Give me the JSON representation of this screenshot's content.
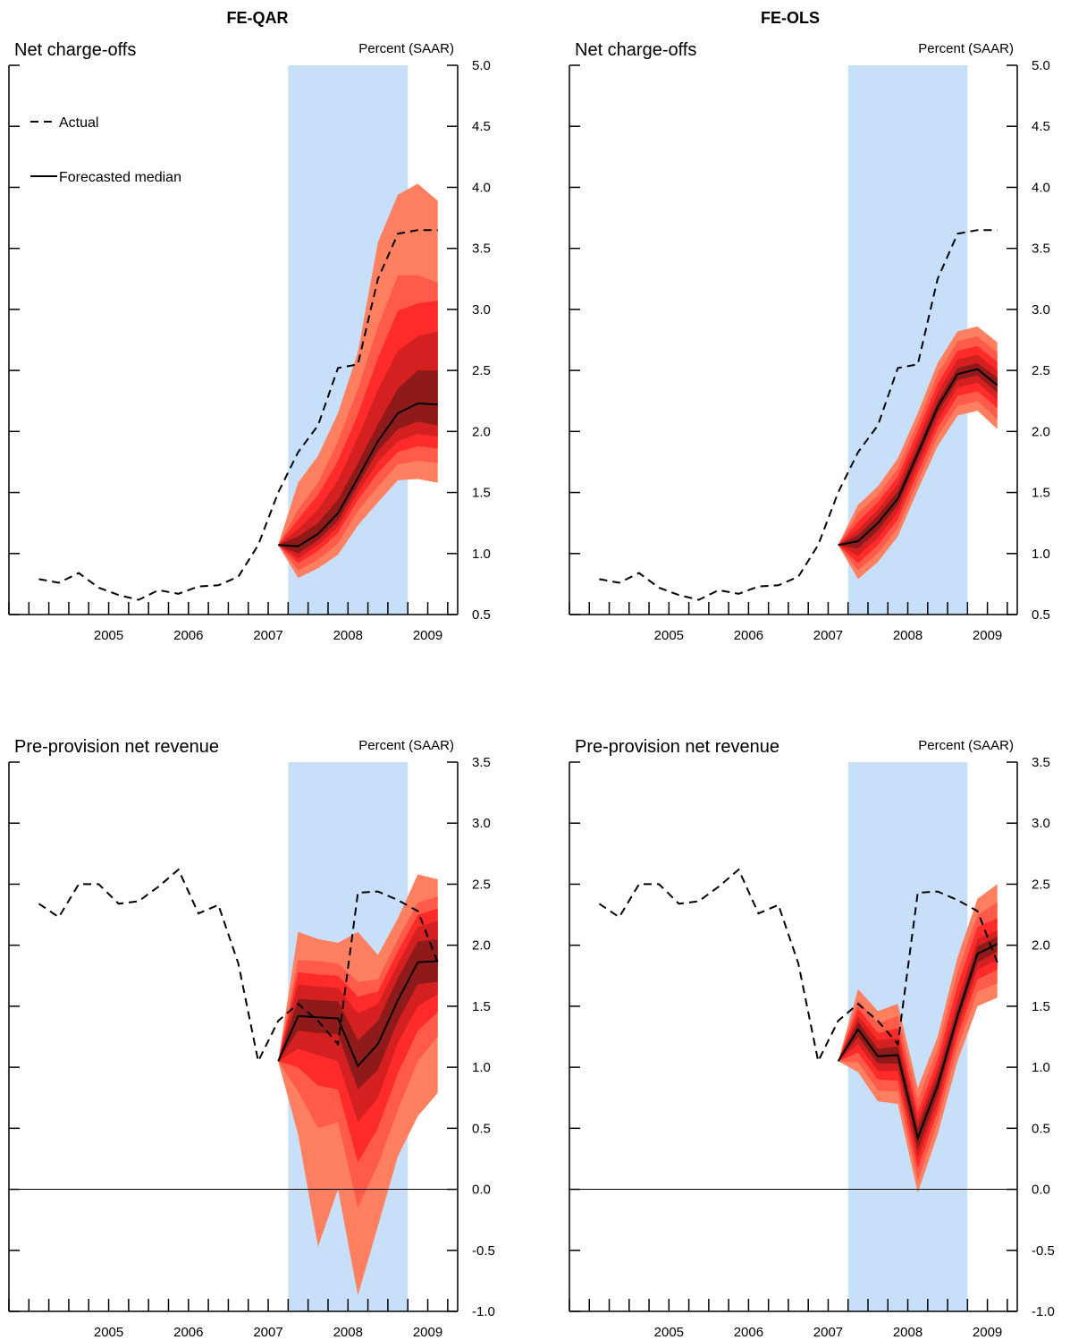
{
  "column_titles": [
    "FE-QAR",
    "FE-OLS"
  ],
  "colors": {
    "recession_band": "#c8dffa",
    "fan_outer": "#ff8060",
    "fan_2": "#ff5a4a",
    "fan_3": "#ff2a2a",
    "fan_4": "#d42020",
    "fan_inner": "#8e1a1a",
    "median_line": "#000000",
    "actual_line": "#000000"
  },
  "legend": {
    "actual": "Actual",
    "median": "Forecasted median"
  },
  "chart_data": [
    {
      "id": "nco-qar",
      "type": "area",
      "title": "Net charge-offs",
      "ylabel": "Percent (SAAR)",
      "column": "FE-QAR",
      "show_legend": true,
      "ylim": [
        0.5,
        5.0
      ],
      "yticks": [
        0.5,
        1.0,
        1.5,
        2.0,
        2.5,
        3.0,
        3.5,
        4.0,
        4.5,
        5.0
      ],
      "ytick_labels": [
        "0.5",
        "1.0",
        "1.5",
        "2.0",
        "2.5",
        "3.0",
        "3.5",
        "4.0",
        "4.5",
        "5.0"
      ],
      "xlim": [
        2004.25,
        2009.875
      ],
      "year_labels": [
        "2005",
        "2006",
        "2007",
        "2008",
        "2009"
      ],
      "recession": [
        2007.75,
        2009.25
      ],
      "zero_line": false,
      "actual": {
        "x": [
          2004.625,
          2004.875,
          2005.125,
          2005.375,
          2005.625,
          2005.875,
          2006.125,
          2006.375,
          2006.625,
          2006.875,
          2007.125,
          2007.375,
          2007.625,
          2007.875,
          2008.125,
          2008.375,
          2008.625,
          2008.875,
          2009.125,
          2009.375,
          2009.625
        ],
        "y": [
          0.79,
          0.76,
          0.84,
          0.72,
          0.66,
          0.62,
          0.7,
          0.67,
          0.73,
          0.74,
          0.81,
          1.07,
          1.5,
          1.83,
          2.05,
          2.52,
          2.55,
          3.25,
          3.62,
          3.65,
          3.65
        ]
      },
      "forecast": {
        "x": [
          2007.625,
          2007.875,
          2008.125,
          2008.375,
          2008.625,
          2008.875,
          2009.125,
          2009.375,
          2009.625
        ],
        "median": [
          1.07,
          1.06,
          1.16,
          1.33,
          1.62,
          1.92,
          2.15,
          2.23,
          2.22
        ],
        "bands": [
          {
            "lower": [
              1.07,
              0.8,
              0.88,
              0.99,
              1.23,
              1.42,
              1.6,
              1.61,
              1.58
            ],
            "upper": [
              1.07,
              1.58,
              1.8,
              2.15,
              2.65,
              3.55,
              3.94,
              4.03,
              3.89
            ]
          },
          {
            "lower": [
              1.07,
              0.86,
              0.95,
              1.08,
              1.35,
              1.55,
              1.73,
              1.76,
              1.74
            ],
            "upper": [
              1.07,
              1.36,
              1.58,
              1.92,
              2.35,
              2.86,
              3.28,
              3.28,
              3.22
            ]
          },
          {
            "lower": [
              1.07,
              0.92,
              1.02,
              1.17,
              1.44,
              1.66,
              1.83,
              1.88,
              1.86
            ],
            "upper": [
              1.07,
              1.28,
              1.48,
              1.76,
              2.14,
              2.6,
              2.99,
              3.05,
              3.07
            ]
          },
          {
            "lower": [
              1.07,
              0.96,
              1.07,
              1.22,
              1.5,
              1.75,
              1.92,
              1.98,
              1.96
            ],
            "upper": [
              1.07,
              1.2,
              1.36,
              1.6,
              1.95,
              2.34,
              2.66,
              2.78,
              2.82
            ]
          },
          {
            "lower": [
              1.07,
              1.0,
              1.11,
              1.27,
              1.56,
              1.84,
              2.02,
              2.08,
              2.05
            ],
            "upper": [
              1.07,
              1.14,
              1.25,
              1.44,
              1.74,
              2.06,
              2.35,
              2.5,
              2.5
            ]
          }
        ]
      }
    },
    {
      "id": "nco-ols",
      "type": "area",
      "title": "Net charge-offs",
      "ylabel": "Percent (SAAR)",
      "column": "FE-OLS",
      "show_legend": false,
      "ylim": [
        0.5,
        5.0
      ],
      "yticks": [
        0.5,
        1.0,
        1.5,
        2.0,
        2.5,
        3.0,
        3.5,
        4.0,
        4.5,
        5.0
      ],
      "ytick_labels": [
        "0.5",
        "1.0",
        "1.5",
        "2.0",
        "2.5",
        "3.0",
        "3.5",
        "4.0",
        "4.5",
        "5.0"
      ],
      "xlim": [
        2004.25,
        2009.875
      ],
      "year_labels": [
        "2005",
        "2006",
        "2007",
        "2008",
        "2009"
      ],
      "recession": [
        2007.75,
        2009.25
      ],
      "zero_line": false,
      "actual": {
        "x": [
          2004.625,
          2004.875,
          2005.125,
          2005.375,
          2005.625,
          2005.875,
          2006.125,
          2006.375,
          2006.625,
          2006.875,
          2007.125,
          2007.375,
          2007.625,
          2007.875,
          2008.125,
          2008.375,
          2008.625,
          2008.875,
          2009.125,
          2009.375,
          2009.625
        ],
        "y": [
          0.79,
          0.76,
          0.84,
          0.72,
          0.66,
          0.62,
          0.7,
          0.67,
          0.73,
          0.74,
          0.81,
          1.07,
          1.5,
          1.83,
          2.05,
          2.52,
          2.55,
          3.25,
          3.62,
          3.65,
          3.65
        ]
      },
      "forecast": {
        "x": [
          2007.625,
          2007.875,
          2008.125,
          2008.375,
          2008.625,
          2008.875,
          2009.125,
          2009.375,
          2009.625
        ],
        "median": [
          1.07,
          1.1,
          1.25,
          1.45,
          1.82,
          2.2,
          2.47,
          2.51,
          2.38
        ],
        "bands": [
          {
            "lower": [
              1.07,
              0.79,
              0.93,
              1.14,
              1.52,
              1.88,
              2.13,
              2.17,
              2.02
            ],
            "upper": [
              1.07,
              1.4,
              1.55,
              1.78,
              2.15,
              2.56,
              2.82,
              2.86,
              2.73
            ]
          },
          {
            "lower": [
              1.07,
              0.86,
              1.0,
              1.21,
              1.59,
              1.96,
              2.21,
              2.25,
              2.1
            ],
            "upper": [
              1.07,
              1.33,
              1.48,
              1.7,
              2.07,
              2.47,
              2.74,
              2.78,
              2.65
            ]
          },
          {
            "lower": [
              1.07,
              0.92,
              1.07,
              1.28,
              1.66,
              2.03,
              2.29,
              2.33,
              2.19
            ],
            "upper": [
              1.07,
              1.26,
              1.42,
              1.63,
              2.0,
              2.39,
              2.66,
              2.7,
              2.57
            ]
          },
          {
            "lower": [
              1.07,
              0.98,
              1.13,
              1.34,
              1.72,
              2.09,
              2.36,
              2.4,
              2.26
            ],
            "upper": [
              1.07,
              1.2,
              1.36,
              1.57,
              1.93,
              2.32,
              2.59,
              2.63,
              2.5
            ]
          },
          {
            "lower": [
              1.07,
              1.04,
              1.19,
              1.4,
              1.77,
              2.15,
              2.42,
              2.46,
              2.32
            ],
            "upper": [
              1.07,
              1.15,
              1.31,
              1.51,
              1.87,
              2.25,
              2.52,
              2.56,
              2.44
            ]
          }
        ]
      }
    },
    {
      "id": "ppnr-qar",
      "type": "area",
      "title": "Pre-provision net revenue",
      "ylabel": "Percent (SAAR)",
      "column": "FE-QAR",
      "show_legend": false,
      "ylim": [
        -1.0,
        3.5
      ],
      "yticks": [
        -1.0,
        -0.5,
        0.0,
        0.5,
        1.0,
        1.5,
        2.0,
        2.5,
        3.0,
        3.5
      ],
      "ytick_labels": [
        "-1.0",
        "-0.5",
        "0.0",
        "0.5",
        "1.0",
        "1.5",
        "2.0",
        "2.5",
        "3.0",
        "3.5"
      ],
      "xlim": [
        2004.25,
        2009.875
      ],
      "year_labels": [
        "2005",
        "2006",
        "2007",
        "2008",
        "2009"
      ],
      "recession": [
        2007.75,
        2009.25
      ],
      "zero_line": true,
      "actual": {
        "x": [
          2004.625,
          2004.875,
          2005.125,
          2005.375,
          2005.625,
          2005.875,
          2006.125,
          2006.375,
          2006.625,
          2006.875,
          2007.125,
          2007.375,
          2007.625,
          2007.875,
          2008.125,
          2008.375,
          2008.625,
          2008.875,
          2009.125,
          2009.375,
          2009.625
        ],
        "y": [
          2.34,
          2.23,
          2.5,
          2.5,
          2.34,
          2.36,
          2.48,
          2.62,
          2.26,
          2.33,
          1.85,
          1.05,
          1.38,
          1.52,
          1.38,
          1.19,
          2.43,
          2.44,
          2.37,
          2.28,
          1.86
        ]
      },
      "forecast": {
        "x": [
          2007.625,
          2007.875,
          2008.125,
          2008.375,
          2008.625,
          2008.875,
          2009.125,
          2009.375,
          2009.625
        ],
        "median": [
          1.05,
          1.42,
          1.41,
          1.4,
          1.01,
          1.19,
          1.55,
          1.86,
          1.87
        ],
        "bands": [
          {
            "lower": [
              1.05,
              0.45,
              -0.47,
              0.0,
              -0.87,
              -0.3,
              0.27,
              0.6,
              0.79
            ],
            "upper": [
              1.05,
              2.11,
              2.05,
              2.02,
              2.11,
              1.92,
              2.22,
              2.58,
              2.54
            ]
          },
          {
            "lower": [
              1.05,
              0.8,
              0.5,
              0.55,
              -0.15,
              0.2,
              0.65,
              1.05,
              1.25
            ],
            "upper": [
              1.05,
              1.88,
              1.87,
              1.85,
              1.7,
              1.72,
              2.05,
              2.35,
              2.4
            ]
          },
          {
            "lower": [
              1.05,
              1.0,
              0.85,
              0.82,
              0.22,
              0.5,
              0.95,
              1.3,
              1.45
            ],
            "upper": [
              1.05,
              1.78,
              1.76,
              1.75,
              1.58,
              1.62,
              1.95,
              2.25,
              2.3
            ]
          },
          {
            "lower": [
              1.05,
              1.15,
              1.1,
              1.05,
              0.55,
              0.75,
              1.2,
              1.5,
              1.6
            ],
            "upper": [
              1.05,
              1.68,
              1.66,
              1.65,
              1.44,
              1.52,
              1.85,
              2.15,
              2.2
            ]
          },
          {
            "lower": [
              1.05,
              1.3,
              1.28,
              1.27,
              0.82,
              0.98,
              1.38,
              1.68,
              1.7
            ],
            "upper": [
              1.05,
              1.56,
              1.55,
              1.54,
              1.22,
              1.38,
              1.73,
              2.03,
              2.05
            ]
          }
        ]
      }
    },
    {
      "id": "ppnr-ols",
      "type": "area",
      "title": "Pre-provision net revenue",
      "ylabel": "Percent (SAAR)",
      "column": "FE-OLS",
      "show_legend": false,
      "ylim": [
        -1.0,
        3.5
      ],
      "yticks": [
        -1.0,
        -0.5,
        0.0,
        0.5,
        1.0,
        1.5,
        2.0,
        2.5,
        3.0,
        3.5
      ],
      "ytick_labels": [
        "-1.0",
        "-0.5",
        "0.0",
        "0.5",
        "1.0",
        "1.5",
        "2.0",
        "2.5",
        "3.0",
        "3.5"
      ],
      "xlim": [
        2004.25,
        2009.875
      ],
      "year_labels": [
        "2005",
        "2006",
        "2007",
        "2008",
        "2009"
      ],
      "recession": [
        2007.75,
        2009.25
      ],
      "zero_line": true,
      "actual": {
        "x": [
          2004.625,
          2004.875,
          2005.125,
          2005.375,
          2005.625,
          2005.875,
          2006.125,
          2006.375,
          2006.625,
          2006.875,
          2007.125,
          2007.375,
          2007.625,
          2007.875,
          2008.125,
          2008.375,
          2008.625,
          2008.875,
          2009.125,
          2009.375,
          2009.625
        ],
        "y": [
          2.34,
          2.23,
          2.5,
          2.5,
          2.34,
          2.36,
          2.48,
          2.62,
          2.26,
          2.33,
          1.85,
          1.05,
          1.38,
          1.52,
          1.38,
          1.19,
          2.43,
          2.44,
          2.37,
          2.28,
          1.86
        ]
      },
      "forecast": {
        "x": [
          2007.625,
          2007.875,
          2008.125,
          2008.375,
          2008.625,
          2008.875,
          2009.125,
          2009.375,
          2009.625
        ],
        "median": [
          1.05,
          1.31,
          1.09,
          1.1,
          0.42,
          0.85,
          1.42,
          1.93,
          2.01
        ],
        "bands": [
          {
            "lower": [
              1.05,
              0.96,
              0.72,
              0.7,
              -0.03,
              0.45,
              1.05,
              1.5,
              1.57
            ],
            "upper": [
              1.05,
              1.64,
              1.46,
              1.52,
              0.83,
              1.25,
              1.9,
              2.38,
              2.5
            ]
          },
          {
            "lower": [
              1.05,
              1.04,
              0.81,
              0.8,
              0.07,
              0.55,
              1.16,
              1.62,
              1.69
            ],
            "upper": [
              1.05,
              1.55,
              1.36,
              1.42,
              0.73,
              1.15,
              1.78,
              2.25,
              2.35
            ]
          },
          {
            "lower": [
              1.05,
              1.12,
              0.9,
              0.89,
              0.17,
              0.64,
              1.25,
              1.72,
              1.8
            ],
            "upper": [
              1.05,
              1.48,
              1.28,
              1.32,
              0.63,
              1.06,
              1.67,
              2.15,
              2.22
            ]
          },
          {
            "lower": [
              1.05,
              1.19,
              0.97,
              0.97,
              0.25,
              0.71,
              1.32,
              1.8,
              1.88
            ],
            "upper": [
              1.05,
              1.42,
              1.22,
              1.24,
              0.56,
              0.98,
              1.55,
              2.05,
              2.12
            ]
          },
          {
            "lower": [
              1.05,
              1.25,
              1.03,
              1.03,
              0.32,
              0.78,
              1.37,
              1.86,
              1.95
            ],
            "upper": [
              1.05,
              1.37,
              1.15,
              1.17,
              0.5,
              0.92,
              1.48,
              1.99,
              2.07
            ]
          }
        ]
      }
    }
  ]
}
